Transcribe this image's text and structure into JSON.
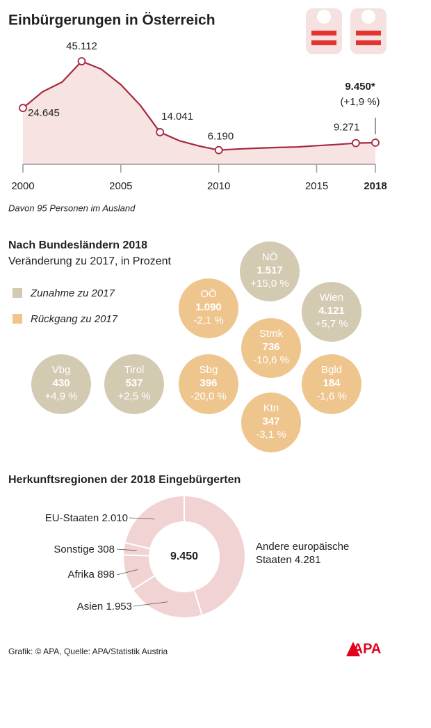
{
  "chart_data": [
    {
      "type": "line",
      "title": "Einbürgerungen in Österreich",
      "x": [
        2000,
        2001,
        2002,
        2003,
        2004,
        2005,
        2006,
        2007,
        2008,
        2009,
        2010,
        2011,
        2012,
        2013,
        2014,
        2015,
        2016,
        2017,
        2018
      ],
      "values": [
        24645,
        31731,
        36011,
        45112,
        41645,
        34876,
        25746,
        14041,
        10258,
        7978,
        6190,
        6690,
        7043,
        7354,
        7570,
        8144,
        8626,
        9271,
        9450
      ],
      "value_labels": [
        "24.645",
        null,
        null,
        "45.112",
        null,
        null,
        null,
        "14.041",
        null,
        null,
        "6.190",
        null,
        null,
        null,
        null,
        null,
        null,
        "9.271",
        "9.450*"
      ],
      "annotation": "(+1,9 %)",
      "footnote": "Davon 95 Personen im Ausland",
      "color": "#a3293f",
      "fill": "#f8e3e3",
      "xlim": [
        2000,
        2018
      ],
      "xticks": [
        2000,
        2005,
        2010,
        2015,
        2018
      ],
      "ylim": [
        0,
        50000
      ]
    },
    {
      "type": "bubble",
      "title": "Nach Bundesländern 2018",
      "subtitle": "Veränderung zu 2017, in Prozent",
      "legend": [
        {
          "name": "Zunahme zu 2017",
          "color": "#d3cab2"
        },
        {
          "name": "Rückgang zu 2017",
          "color": "#efc58e"
        }
      ],
      "categories": [
        "NÖ",
        "OÖ",
        "Wien",
        "Stmk",
        "Vbg",
        "Tirol",
        "Sbg",
        "Bgld",
        "Ktn"
      ],
      "values": [
        1517,
        1090,
        4121,
        736,
        430,
        537,
        396,
        184,
        347
      ],
      "value_labels": [
        "1.517",
        "1.090",
        "4.121",
        "736",
        "430",
        "537",
        "396",
        "184",
        "347"
      ],
      "changes": [
        15.0,
        -2.1,
        5.7,
        -10.6,
        4.9,
        2.5,
        -20.0,
        -1.6,
        -3.1
      ],
      "change_labels": [
        "+15,0 %",
        "-2,1 %",
        "+5,7 %",
        "-10,6 %",
        "+4,9 %",
        "+2,5 %",
        "-20,0 %",
        "-1,6 %",
        "-3,1 %"
      ]
    },
    {
      "type": "donut",
      "title": "Herkunftsregionen der 2018 Eingebürgerten",
      "categories": [
        "Andere europäische Staaten",
        "Asien",
        "Afrika",
        "Sonstige",
        "EU-Staaten"
      ],
      "values": [
        4281,
        1953,
        898,
        308,
        2010
      ],
      "value_labels": [
        "4.281",
        "1.953",
        "898",
        "308",
        "2.010"
      ],
      "center_label": "9.450",
      "color": "#f2d3d3"
    }
  ],
  "source": "Grafik: © APA, Quelle: APA/Statistik Austria",
  "logo": "APA"
}
